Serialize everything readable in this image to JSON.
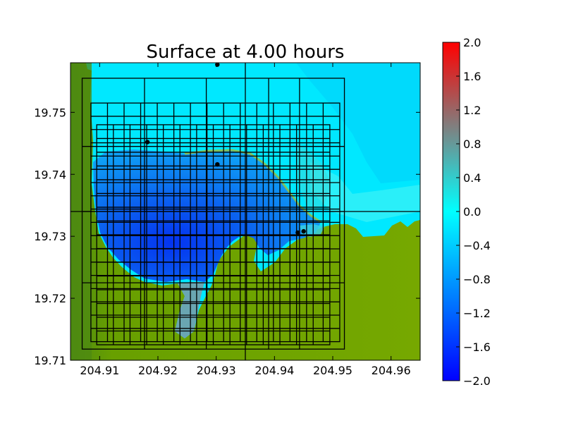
{
  "chart_data": {
    "type": "heatmap",
    "title": "Surface at 4.00 hours",
    "xlabel": "",
    "ylabel": "",
    "xlim": [
      204.905,
      204.965
    ],
    "ylim": [
      19.71,
      19.758
    ],
    "x_ticks": [
      204.91,
      204.92,
      204.93,
      204.94,
      204.95,
      204.96
    ],
    "x_tick_labels": [
      "204.91",
      "204.92",
      "204.93",
      "204.94",
      "204.95",
      "204.96"
    ],
    "y_ticks": [
      19.71,
      19.72,
      19.73,
      19.74,
      19.75
    ],
    "y_tick_labels": [
      "19.71",
      "19.72",
      "19.73",
      "19.74",
      "19.75"
    ],
    "colorbar": {
      "min": -2.0,
      "max": 2.0,
      "ticks": [
        2.0,
        1.6,
        1.2,
        0.8,
        0.4,
        0.0,
        -0.4,
        -0.8,
        -1.2,
        -1.6,
        -2.0
      ],
      "tick_labels": [
        "2.0",
        "1.6",
        "1.2",
        "0.8",
        "0.4",
        "0.0",
        "−0.4",
        "−0.8",
        "−1.2",
        "−1.6",
        "−2.0"
      ],
      "colormap": [
        "#0000ff",
        "#00ffff",
        "#ff0000"
      ]
    },
    "colors": {
      "land_light": "#76a800",
      "land_dark": "#4d8a12",
      "deep_water": "#0a4fe0",
      "shallow_water": "#00e8ff",
      "grid_line": "#000000"
    },
    "grid": true,
    "grid_levels": [
      {
        "name": "level1",
        "xlim": [
          204.905,
          204.965
        ],
        "ylim": [
          19.71,
          19.758
        ],
        "lines_x": [
          204.935
        ],
        "lines_y": [
          19.734
        ]
      },
      {
        "name": "level2",
        "xlim": [
          204.907,
          204.952
        ],
        "ylim": [
          19.7118,
          19.7555
        ],
        "lines_x": [
          204.9177,
          204.9283,
          204.939,
          204.9443
        ],
        "lines_y": [
          19.7225,
          19.734,
          19.7445
        ]
      },
      {
        "name": "level3",
        "xlim": [
          204.9085,
          204.9512
        ],
        "ylim": [
          19.713,
          19.7515
        ],
        "nx": 15,
        "ny": 18
      },
      {
        "name": "level4",
        "xlim": [
          204.9095,
          204.9495
        ],
        "ylim": [
          19.7125,
          19.748
        ],
        "nx": 14,
        "ny": 16
      }
    ],
    "gauges": [
      {
        "x": 204.9302,
        "y": 19.7577
      },
      {
        "x": 204.9182,
        "y": 19.7452
      },
      {
        "x": 204.9302,
        "y": 19.7416
      },
      {
        "x": 204.944,
        "y": 19.7306
      },
      {
        "x": 204.945,
        "y": 19.7308
      }
    ]
  }
}
